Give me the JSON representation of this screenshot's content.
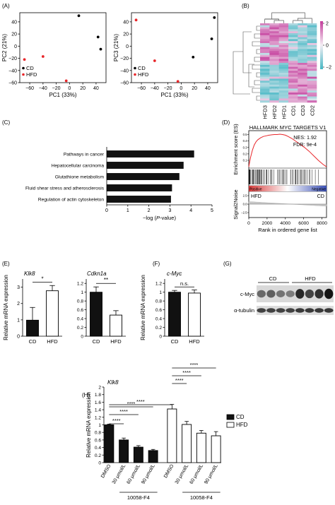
{
  "panels": [
    {
      "id": "A",
      "label": "(A)"
    },
    {
      "id": "B",
      "label": "(B)"
    },
    {
      "id": "C",
      "label": "(C)"
    },
    {
      "id": "D",
      "label": "(D)"
    },
    {
      "id": "E",
      "label": "(E)"
    },
    {
      "id": "F",
      "label": "(F)"
    },
    {
      "id": "G",
      "label": "(G)"
    },
    {
      "id": "H",
      "label": "(H)"
    }
  ],
  "colors": {
    "cd": "#000000",
    "hfd": "#e8262a",
    "bar_black": "#111111",
    "heat_high": "#c43c9c",
    "heat_low": "#45b7c4",
    "heat_mid": "#f4eef4",
    "enrich_line": "#e8262a"
  },
  "chart_data": [
    {
      "id": "A1",
      "type": "scatter",
      "xlabel": "PC1 (33%)",
      "ylabel": "PC2 (21%)",
      "xlim": [
        -75,
        55
      ],
      "ylim": [
        -60,
        55
      ],
      "xticks": [
        "−60",
        "−40",
        "−20",
        "0",
        "20",
        "40"
      ],
      "yticks": [
        "−60",
        "−40",
        "−20",
        "0",
        "20",
        "40"
      ],
      "xtick_values": [
        -60,
        -40,
        -20,
        0,
        20,
        40
      ],
      "ytick_values": [
        -60,
        -40,
        -20,
        0,
        20,
        40
      ],
      "legend": [
        "CD",
        "HFD"
      ],
      "series": [
        {
          "name": "CD",
          "points": [
            [
              14,
              50
            ],
            [
              43,
              15
            ],
            [
              47,
              -5
            ]
          ]
        },
        {
          "name": "HFD",
          "points": [
            [
              -68,
              -22
            ],
            [
              -40,
              -17
            ],
            [
              -5,
              -57
            ]
          ]
        }
      ]
    },
    {
      "id": "A2",
      "type": "scatter",
      "xlabel": "PC1 (33%)",
      "ylabel": "PC3 (21%)",
      "xlim": [
        -75,
        55
      ],
      "ylim": [
        -60,
        55
      ],
      "xticks": [
        "−60",
        "−40",
        "−20",
        "0",
        "20",
        "40"
      ],
      "yticks": [
        "−60",
        "−40",
        "−20",
        "0",
        "20",
        "40"
      ],
      "xtick_values": [
        -60,
        -40,
        -20,
        0,
        20,
        40
      ],
      "ytick_values": [
        -60,
        -40,
        -20,
        0,
        20,
        40
      ],
      "legend": [
        "CD",
        "HFD"
      ],
      "series": [
        {
          "name": "CD",
          "points": [
            [
              50,
              47
            ],
            [
              46,
              12
            ],
            [
              18,
              -18
            ]
          ]
        },
        {
          "name": "HFD",
          "points": [
            [
              -68,
              43
            ],
            [
              -40,
              -24
            ],
            [
              -5,
              -58
            ]
          ]
        }
      ]
    },
    {
      "id": "B",
      "type": "heatmap",
      "columns": [
        "HFD3",
        "HFD2",
        "HFD1",
        "CD1",
        "CD3",
        "CD2"
      ],
      "colorbar_ticks": [
        "2",
        "0",
        "−2"
      ],
      "colorbar_values": [
        2,
        0,
        -2
      ]
    },
    {
      "id": "C",
      "type": "bar",
      "categories": [
        "Pathways in cancer",
        "Hepatocellular carcinoma",
        "Glutathione metabolism",
        "Fluid shear stress and atherosclerosis",
        "Regulation of actin cytoskeleton"
      ],
      "values": [
        4.15,
        3.65,
        3.45,
        3.1,
        3.05
      ],
      "xlabel_prefix": "−log (",
      "xlabel_italic": "P",
      "xlabel_suffix": "-value)",
      "xlim": [
        0,
        5
      ],
      "xticks": [
        "0",
        "1",
        "2",
        "3",
        "4",
        "5"
      ],
      "xtick_values": [
        0,
        1,
        2,
        3,
        4,
        5
      ]
    },
    {
      "id": "D",
      "type": "line",
      "title": "HALLMARK MYC TARGETS V1",
      "nes": "NES: 1.92",
      "fdr": "FDR: 9e-4",
      "ylabel_top": "Enrichment score (ES)",
      "ylabel_bottom": "Signal2Noise",
      "xlabel": "Rank in ordered gene list",
      "xlim": [
        0,
        8500
      ],
      "xticks": [
        "0",
        "2000",
        "4000",
        "6000",
        "8000"
      ],
      "xtick_values": [
        0,
        2000,
        4000,
        6000,
        8000
      ],
      "yticks_top": [
        "0.1",
        "0.2",
        "0.3",
        "0.4",
        "0.5"
      ],
      "ytick_values_top": [
        0.1,
        0.2,
        0.3,
        0.4,
        0.5
      ],
      "ylim_top": [
        -0.02,
        0.56
      ],
      "yticks_bottom": [
        "2.5",
        "0.0",
        "−2.5"
      ],
      "positive_label": "Positive",
      "negative_label": "Negative",
      "left_group": "HFD",
      "right_group": "CD",
      "es_curve": {
        "x": [
          0,
          100,
          200,
          400,
          600,
          800,
          1000,
          1300,
          1600,
          1900,
          2200,
          2500,
          2800,
          3100,
          3400,
          3700,
          4000,
          4300,
          4700,
          5100,
          5600,
          6100,
          6600,
          7100,
          7600,
          8100,
          8500
        ],
        "y": [
          0,
          0.08,
          0.15,
          0.26,
          0.34,
          0.39,
          0.42,
          0.45,
          0.47,
          0.48,
          0.49,
          0.495,
          0.5,
          0.5,
          0.505,
          0.5,
          0.49,
          0.47,
          0.44,
          0.4,
          0.35,
          0.3,
          0.24,
          0.17,
          0.1,
          0.04,
          0.0
        ]
      }
    },
    {
      "id": "E1",
      "type": "bar",
      "title": "Klk8",
      "ylabel": "Relative mRNA expression",
      "categories": [
        "CD",
        "HFD"
      ],
      "values": [
        0.98,
        2.78
      ],
      "errors": [
        0.78,
        0.32
      ],
      "ylim": [
        0,
        3.5
      ],
      "yticks": [
        "0",
        "1",
        "2",
        "3"
      ],
      "ytick_values": [
        0,
        1,
        2,
        3
      ],
      "significance": "*"
    },
    {
      "id": "E2",
      "type": "bar",
      "title": "Cdkn1a",
      "categories": [
        "CD",
        "HFD"
      ],
      "values": [
        1.0,
        0.48
      ],
      "errors": [
        0.12,
        0.1
      ],
      "ylim": [
        0,
        1.3
      ],
      "yticks": [
        "0",
        "0.2",
        "0.4",
        "0.6",
        "0.8",
        "1",
        "1.2"
      ],
      "ytick_values": [
        0,
        0.2,
        0.4,
        0.6,
        0.8,
        1.0,
        1.2
      ],
      "significance": "**"
    },
    {
      "id": "F",
      "type": "bar",
      "title": "c-Myc",
      "ylabel": "Relative mRNA expression",
      "categories": [
        "CD",
        "HFD"
      ],
      "values": [
        1.0,
        0.98
      ],
      "errors": [
        0.04,
        0.07
      ],
      "ylim": [
        0,
        1.3
      ],
      "yticks": [
        "0",
        "0.2",
        "0.4",
        "0.6",
        "0.8",
        "1",
        "1.2"
      ],
      "ytick_values": [
        0,
        0.2,
        0.4,
        0.6,
        0.8,
        1.0,
        1.2
      ],
      "significance": "n.s."
    },
    {
      "id": "G",
      "type": "table",
      "groups": [
        "CD",
        "HFD"
      ],
      "rows": [
        "c-Myc",
        "α-tubulin"
      ],
      "cmyc_intensity": [
        0.5,
        0.55,
        0.45,
        0.4,
        0.85,
        0.7,
        0.8,
        0.95
      ],
      "tubulin_intensity": [
        0.75,
        0.75,
        0.75,
        0.75,
        0.8,
        0.8,
        0.8,
        0.8
      ]
    },
    {
      "id": "H",
      "type": "bar",
      "title": "Klk8",
      "ylabel": "Relative mRNA expression",
      "categories": [
        "DMSO",
        "30 μmol/L",
        "60 μmol/L",
        "90 μmol/L",
        "DMSO",
        "30 μmol/L",
        "60 μmol/L",
        "90 μmol/L"
      ],
      "values": [
        1.0,
        0.6,
        0.41,
        0.32,
        1.42,
        1.01,
        0.78,
        0.71
      ],
      "errors": [
        0.02,
        0.05,
        0.04,
        0.03,
        0.12,
        0.08,
        0.07,
        0.11
      ],
      "groups": [
        "CD",
        "CD",
        "CD",
        "CD",
        "HFD",
        "HFD",
        "HFD",
        "HFD"
      ],
      "ylim": [
        0,
        2
      ],
      "yticks": [
        "0",
        "0.2",
        "0.4",
        "0.6",
        "0.8",
        "1",
        "1.2",
        "1.4",
        "1.6",
        "1.8",
        "2"
      ],
      "ytick_values": [
        0,
        0.2,
        0.4,
        0.6,
        0.8,
        1.0,
        1.2,
        1.4,
        1.6,
        1.8,
        2.0
      ],
      "treatment_label": "10058-F4",
      "legend": [
        "CD",
        "HFD"
      ],
      "significance": [
        "****",
        "****",
        "****",
        "****",
        "****",
        "****"
      ]
    }
  ]
}
